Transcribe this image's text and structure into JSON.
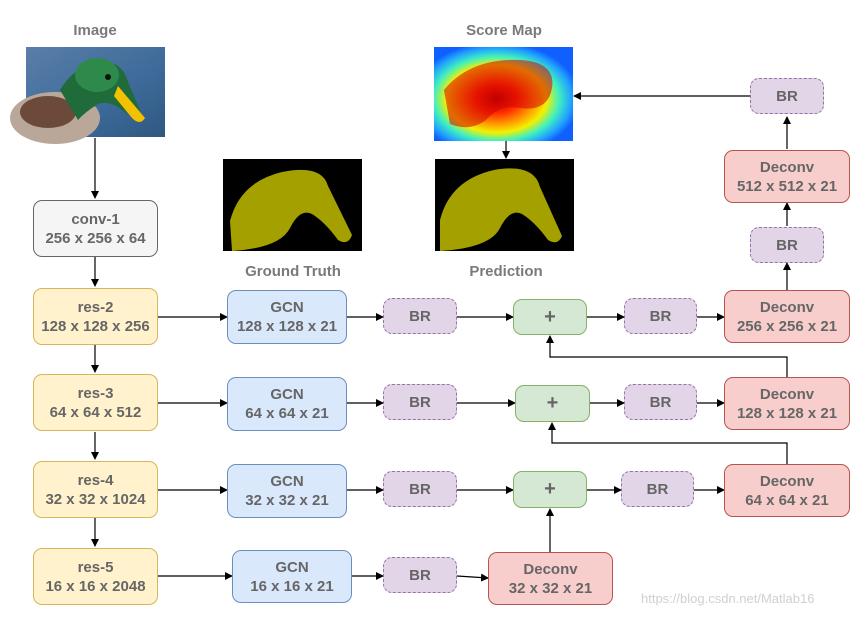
{
  "labels": {
    "image": "Image",
    "score_map": "Score Map",
    "ground_truth": "Ground Truth",
    "prediction": "Prediction"
  },
  "encoder": {
    "conv1": {
      "name": "conv-1",
      "dims": "256 x 256 x 64"
    },
    "res2": {
      "name": "res-2",
      "dims": "128 x 128 x 256"
    },
    "res3": {
      "name": "res-3",
      "dims": "64 x 64 x 512"
    },
    "res4": {
      "name": "res-4",
      "dims": "32 x 32 x 1024"
    },
    "res5": {
      "name": "res-5",
      "dims": "16 x 16 x 2048"
    }
  },
  "gcn": {
    "g2": {
      "name": "GCN",
      "dims": "128 x 128 x 21"
    },
    "g3": {
      "name": "GCN",
      "dims": "64 x 64 x 21"
    },
    "g4": {
      "name": "GCN",
      "dims": "32 x 32 x 21"
    },
    "g5": {
      "name": "GCN",
      "dims": "16 x 16 x 21"
    }
  },
  "br_label": "BR",
  "plus_label": "+",
  "deconv": {
    "d1": {
      "name": "Deconv",
      "dims": "32 x 32 x 21"
    },
    "d2": {
      "name": "Deconv",
      "dims": "64 x 64 x 21"
    },
    "d3": {
      "name": "Deconv",
      "dims": "128 x 128 x 21"
    },
    "d4": {
      "name": "Deconv",
      "dims": "256 x 256 x 21"
    },
    "d5": {
      "name": "Deconv",
      "dims": "512 x 512 x 21"
    }
  },
  "watermark": "https://blog.csdn.net/Matlab16",
  "colors": {
    "arrow": "#000000",
    "silhouette": "#a3a000",
    "mask_background": "#000000"
  }
}
